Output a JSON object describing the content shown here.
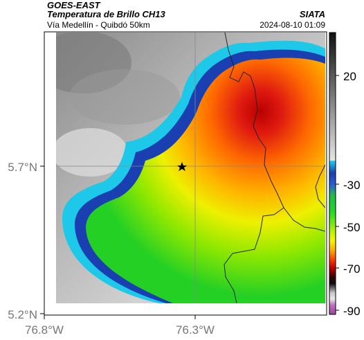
{
  "header": {
    "satellite": "GOES-EAST",
    "product": "Temperatura de Brillo CH13",
    "organization": "SIATA",
    "route": "Vía Medellín - Quibdó 50km",
    "datetime": "2024-08-10 01:09"
  },
  "axes": {
    "lat_ticks": [
      "5.7°N",
      "5.2°N"
    ],
    "lon_ticks": [
      "76.8°W",
      "76.3°W"
    ]
  },
  "marker": {
    "icon": "star-icon"
  },
  "colorbar": {
    "labels": [
      "20",
      "-30",
      "-50",
      "-70",
      "-90"
    ],
    "colors": {
      "warm_gray_top": "#1a1a1a",
      "warm_gray_bottom": "#d8d8d8",
      "cyan": "#1ec8e8",
      "blue": "#1a3fb0",
      "green": "#22cc22",
      "yellow": "#f5f500",
      "orange": "#ff8800",
      "red": "#e01010",
      "dark_red": "#6a0000",
      "magenta": "#c050c0"
    }
  }
}
